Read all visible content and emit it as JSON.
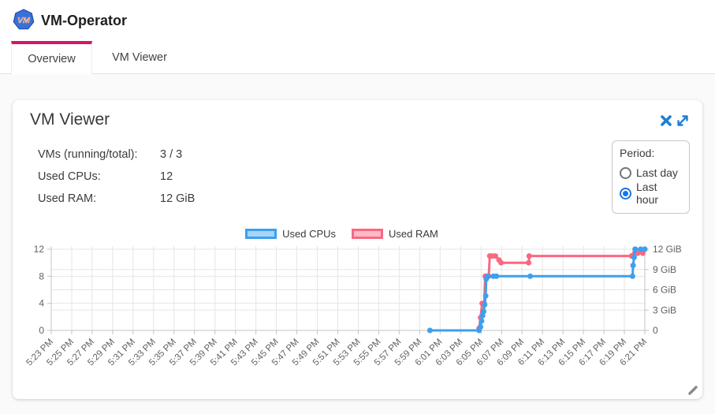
{
  "header": {
    "app_title": "VM-Operator",
    "logo_text": "VM",
    "tabs": [
      {
        "label": "Overview",
        "active": true
      },
      {
        "label": "VM Viewer",
        "active": false
      }
    ]
  },
  "card": {
    "title": "VM Viewer",
    "icons": [
      "close-icon",
      "expand-icon",
      "resize-handle-icon"
    ],
    "stats": [
      {
        "label": "VMs (running/total):",
        "value": "3 / 3"
      },
      {
        "label": "Used CPUs:",
        "value": "12"
      },
      {
        "label": "Used RAM:",
        "value": "12 GiB"
      }
    ],
    "period": {
      "label": "Period:",
      "options": [
        {
          "label": "Last day",
          "selected": false
        },
        {
          "label": "Last hour",
          "selected": true
        }
      ]
    }
  },
  "chart_data": {
    "type": "line",
    "title": "",
    "legend_position": "top",
    "grid": true,
    "x_unit": "minutes after 5:23 PM, 2-minute ticks",
    "x_range_minutes": [
      0,
      58
    ],
    "x_labels": [
      "5:23 PM",
      "5:25 PM",
      "5:27 PM",
      "5:29 PM",
      "5:31 PM",
      "5:33 PM",
      "5:35 PM",
      "5:37 PM",
      "5:39 PM",
      "5:41 PM",
      "5:43 PM",
      "5:45 PM",
      "5:47 PM",
      "5:49 PM",
      "5:51 PM",
      "5:53 PM",
      "5:55 PM",
      "5:57 PM",
      "5:59 PM",
      "6:01 PM",
      "6:03 PM",
      "6:05 PM",
      "6:07 PM",
      "6:09 PM",
      "6:11 PM",
      "6:13 PM",
      "6:15 PM",
      "6:17 PM",
      "6:19 PM",
      "6:21 PM"
    ],
    "y_left": {
      "range": [
        0,
        12
      ],
      "ticks": [
        [
          0,
          "0"
        ],
        [
          4,
          "4"
        ],
        [
          8,
          "8"
        ],
        [
          12,
          "12"
        ]
      ]
    },
    "y_right": {
      "range": [
        0,
        12
      ],
      "ticks": [
        [
          0,
          "0"
        ],
        [
          3,
          "3 GiB"
        ],
        [
          6,
          "6 GiB"
        ],
        [
          9,
          "9 GiB"
        ],
        [
          12,
          "12 GiB"
        ]
      ]
    },
    "gridlines_y": [
      3,
      4,
      6,
      8,
      9,
      12
    ],
    "series": [
      {
        "name": "Used CPUs",
        "axis": "left",
        "color": "#3CA0EE",
        "points": [
          [
            37,
            0
          ],
          [
            41.8,
            0
          ],
          [
            41.95,
            0.5
          ],
          [
            42.05,
            1.4
          ],
          [
            42.15,
            2.2
          ],
          [
            42.25,
            2.8
          ],
          [
            42.35,
            3.8
          ],
          [
            42.45,
            5.1
          ],
          [
            42.5,
            7.6
          ],
          [
            42.65,
            8
          ],
          [
            43.2,
            8
          ],
          [
            43.5,
            8
          ],
          [
            46.8,
            8
          ],
          [
            56.8,
            8
          ],
          [
            56.85,
            9.6
          ],
          [
            56.95,
            10.8
          ],
          [
            57.05,
            12
          ],
          [
            57.6,
            12
          ],
          [
            58,
            12
          ]
        ]
      },
      {
        "name": "Used RAM",
        "axis": "right",
        "color": "#F96880",
        "points": [
          [
            41.8,
            0.3
          ],
          [
            41.95,
            1.9
          ],
          [
            42.1,
            4
          ],
          [
            42.3,
            4
          ],
          [
            42.4,
            8
          ],
          [
            42.75,
            8
          ],
          [
            42.85,
            11
          ],
          [
            43.1,
            11
          ],
          [
            43.4,
            11
          ],
          [
            43.75,
            10.4
          ],
          [
            43.95,
            10
          ],
          [
            46.65,
            10
          ],
          [
            46.7,
            11
          ],
          [
            56.7,
            11
          ],
          [
            57.05,
            12
          ],
          [
            57.3,
            11.4
          ],
          [
            57.8,
            11.4
          ]
        ]
      }
    ]
  },
  "colors": {
    "tab_indicator": "#d4146a",
    "icon_blue": "#1c7fd6",
    "radio_selected": "#1a73e8",
    "grid_line": "#e5e5e5",
    "axis_line": "#c4c4c4",
    "tick_text": "#616161",
    "logo_fill": "#3a70d8",
    "logo_text": "#f0731f"
  }
}
